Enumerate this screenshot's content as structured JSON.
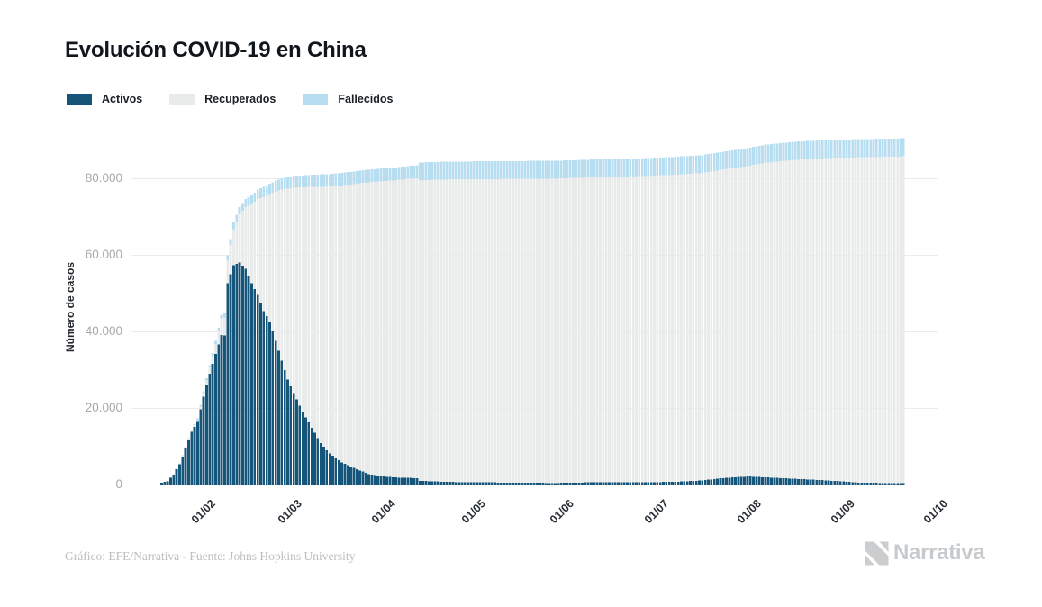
{
  "title": "Evolución COVID-19 en China",
  "legend": [
    {
      "label": "Activos",
      "color": "#15557A"
    },
    {
      "label": "Recuperados",
      "color": "#E9EBEB"
    },
    {
      "label": "Fallecidos",
      "color": "#B7DEF0"
    }
  ],
  "y_axis": {
    "title": "Número de casos",
    "ticks": [
      "0",
      "20.000",
      "40.000",
      "60.000",
      "80.000"
    ]
  },
  "x_axis": {
    "ticks": [
      "01/02",
      "01/03",
      "01/04",
      "01/05",
      "01/06",
      "01/07",
      "01/08",
      "01/09",
      "01/10"
    ]
  },
  "footer": {
    "credit": "Gráfico: EFE/Narrativa - Fuente: Johns Hopkins University",
    "brand": "Narrativa"
  },
  "chart_data": {
    "type": "bar",
    "stacked": true,
    "title": "Evolución COVID-19 en China",
    "xlabel": "",
    "ylabel": "Número de casos",
    "ylim": [
      0,
      93000
    ],
    "grid": true,
    "legend_position": "top-left",
    "x_tick_labels": [
      "01/02",
      "01/03",
      "01/04",
      "01/05",
      "01/06",
      "01/07",
      "01/08",
      "01/09",
      "01/10"
    ],
    "series_names": [
      "Activos",
      "Recuperados",
      "Fallecidos"
    ],
    "colors": {
      "activos": "#15557A",
      "recuperados": "#E9EBEB",
      "fallecidos": "#B7DEF0"
    },
    "points_note": "daily stacked bars from 2020-01-22 to 2020-09-25; values between anchors are linear",
    "points": [
      {
        "date": "2020-01-22",
        "active": 503,
        "recovered": 28,
        "deaths": 17
      },
      {
        "date": "2020-01-24",
        "active": 843,
        "recovered": 36,
        "deaths": 41
      },
      {
        "date": "2020-01-26",
        "active": 2633,
        "recovered": 49,
        "deaths": 80
      },
      {
        "date": "2020-01-28",
        "active": 5287,
        "recovered": 103,
        "deaths": 131
      },
      {
        "date": "2020-01-30",
        "active": 9395,
        "recovered": 171,
        "deaths": 213
      },
      {
        "date": "2020-02-01",
        "active": 13744,
        "recovered": 377,
        "deaths": 259
      },
      {
        "date": "2020-02-03",
        "active": 16343,
        "recovered": 534,
        "deaths": 361
      },
      {
        "date": "2020-02-05",
        "active": 22980,
        "recovered": 892,
        "deaths": 491
      },
      {
        "date": "2020-02-07",
        "active": 28938,
        "recovered": 1637,
        "deaths": 636
      },
      {
        "date": "2020-02-09",
        "active": 34109,
        "recovered": 2631,
        "deaths": 811
      },
      {
        "date": "2020-02-11",
        "active": 39072,
        "recovered": 4201,
        "deaths": 1113
      },
      {
        "date": "2020-02-12",
        "active": 38904,
        "recovered": 4740,
        "deaths": 1115
      },
      {
        "date": "2020-02-13",
        "active": 52612,
        "recovered": 5911,
        "deaths": 1372
      },
      {
        "date": "2020-02-15",
        "active": 57329,
        "recovered": 9419,
        "deaths": 1665
      },
      {
        "date": "2020-02-17",
        "active": 57983,
        "recovered": 12583,
        "deaths": 1868
      },
      {
        "date": "2020-02-19",
        "active": 56368,
        "recovered": 16122,
        "deaths": 2129
      },
      {
        "date": "2020-02-21",
        "active": 52546,
        "recovered": 20659,
        "deaths": 2345
      },
      {
        "date": "2020-02-23",
        "active": 49537,
        "recovered": 25015,
        "deaths": 2470
      },
      {
        "date": "2020-02-25",
        "active": 45343,
        "recovered": 29745,
        "deaths": 2666
      },
      {
        "date": "2020-02-27",
        "active": 42576,
        "recovered": 33277,
        "deaths": 2747
      },
      {
        "date": "2020-02-29",
        "active": 37516,
        "recovered": 39002,
        "deaths": 2838
      },
      {
        "date": "2020-03-02",
        "active": 32301,
        "recovered": 44810,
        "deaths": 2915
      },
      {
        "date": "2020-03-04",
        "active": 27434,
        "recovered": 49856,
        "deaths": 2981
      },
      {
        "date": "2020-03-06",
        "active": 23855,
        "recovered": 53726,
        "deaths": 3070
      },
      {
        "date": "2020-03-09",
        "active": 18881,
        "recovered": 58735,
        "deaths": 3119
      },
      {
        "date": "2020-03-12",
        "active": 14859,
        "recovered": 62901,
        "deaths": 3172
      },
      {
        "date": "2020-03-15",
        "active": 10783,
        "recovered": 67017,
        "deaths": 3203
      },
      {
        "date": "2020-03-18",
        "active": 8106,
        "recovered": 69755,
        "deaths": 3241
      },
      {
        "date": "2020-03-22",
        "active": 5770,
        "recovered": 72362,
        "deaths": 3265
      },
      {
        "date": "2020-03-26",
        "active": 4310,
        "recovered": 74181,
        "deaths": 3291
      },
      {
        "date": "2020-03-31",
        "active": 2764,
        "recovered": 76206,
        "deaths": 3309
      },
      {
        "date": "2020-04-05",
        "active": 2062,
        "recovered": 77207,
        "deaths": 3333
      },
      {
        "date": "2020-04-10",
        "active": 1810,
        "recovered": 77791,
        "deaths": 3340
      },
      {
        "date": "2020-04-16",
        "active": 1656,
        "recovered": 78401,
        "deaths": 3346
      },
      {
        "date": "2020-04-17",
        "active": 984,
        "recovered": 78523,
        "deaths": 4642
      },
      {
        "date": "2020-04-25",
        "active": 703,
        "recovered": 78993,
        "deaths": 4642
      },
      {
        "date": "2020-05-05",
        "active": 564,
        "recovered": 79208,
        "deaths": 4643
      },
      {
        "date": "2020-05-15",
        "active": 520,
        "recovered": 79316,
        "deaths": 4645
      },
      {
        "date": "2020-06-01",
        "active": 386,
        "recovered": 79554,
        "deaths": 4648
      },
      {
        "date": "2020-06-15",
        "active": 606,
        "recovered": 79680,
        "deaths": 4653
      },
      {
        "date": "2020-06-30",
        "active": 567,
        "recovered": 80004,
        "deaths": 4661
      },
      {
        "date": "2020-07-10",
        "active": 689,
        "recovered": 80211,
        "deaths": 4662
      },
      {
        "date": "2020-07-20",
        "active": 1055,
        "recovered": 80331,
        "deaths": 4664
      },
      {
        "date": "2020-07-27",
        "active": 1703,
        "recovered": 80622,
        "deaths": 4665
      },
      {
        "date": "2020-08-04",
        "active": 2100,
        "recovered": 81100,
        "deaths": 4686
      },
      {
        "date": "2020-08-10",
        "active": 1900,
        "recovered": 82184,
        "deaths": 4709
      },
      {
        "date": "2020-08-20",
        "active": 1500,
        "recovered": 83337,
        "deaths": 4715
      },
      {
        "date": "2020-09-01",
        "active": 994,
        "recovered": 84346,
        "deaths": 4724
      },
      {
        "date": "2020-09-10",
        "active": 522,
        "recovered": 84963,
        "deaths": 4729
      },
      {
        "date": "2020-09-18",
        "active": 384,
        "recovered": 85218,
        "deaths": 4731
      },
      {
        "date": "2020-09-25",
        "active": 299,
        "recovered": 85408,
        "deaths": 4735
      }
    ]
  }
}
